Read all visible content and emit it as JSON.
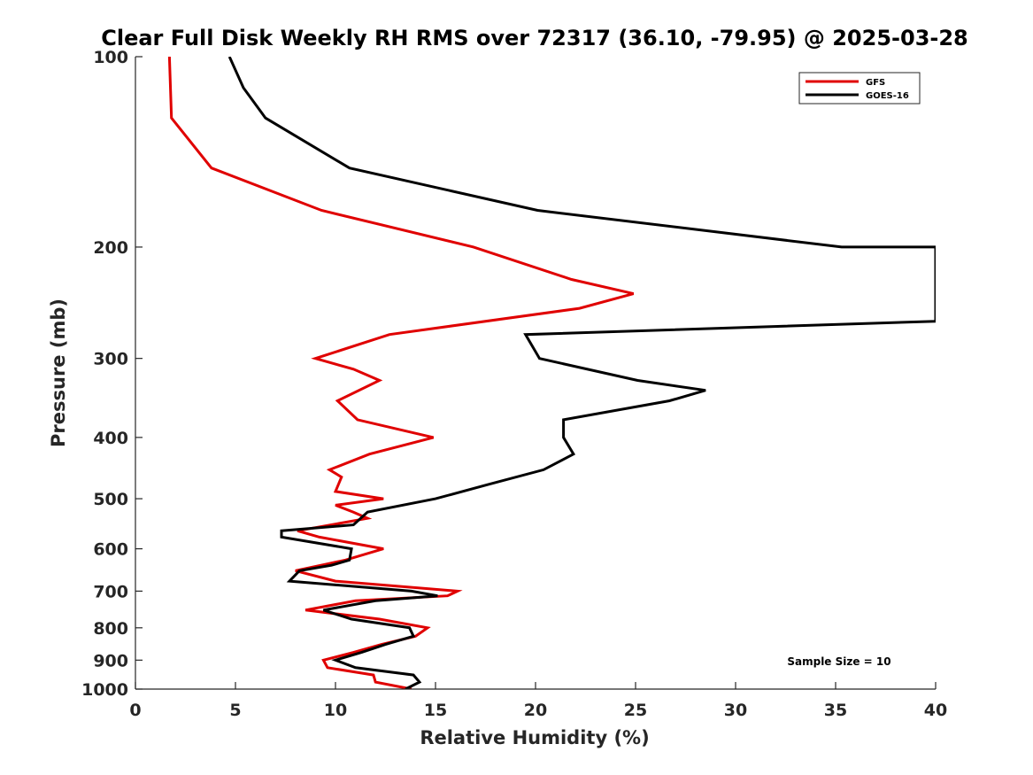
{
  "chart_data": {
    "type": "line",
    "title": "Clear Full Disk Weekly RH RMS over 72317 (36.10, -79.95) @ 2025-03-28",
    "xlabel": "Relative Humidity (%)",
    "ylabel": "Pressure (mb)",
    "xlim": [
      0,
      40
    ],
    "ylim": [
      100,
      1000
    ],
    "y_scale": "log",
    "y_reversed": true,
    "x_ticks": [
      0,
      5,
      10,
      15,
      20,
      25,
      30,
      35,
      40
    ],
    "y_ticks": [
      100,
      200,
      300,
      400,
      500,
      600,
      700,
      800,
      900,
      1000
    ],
    "grid": false,
    "legend_position": "top-right",
    "annotation": "Sample Size = 10",
    "colors": {
      "GFS": "#e00000",
      "GOES-16": "#000000"
    },
    "series": [
      {
        "name": "GFS",
        "points": [
          [
            13.8,
            1000
          ],
          [
            12.0,
            975
          ],
          [
            11.9,
            950
          ],
          [
            9.6,
            925
          ],
          [
            9.4,
            900
          ],
          [
            10.9,
            875
          ],
          [
            12.3,
            850
          ],
          [
            14.0,
            825
          ],
          [
            14.6,
            800
          ],
          [
            12.2,
            775
          ],
          [
            8.5,
            750
          ],
          [
            11.0,
            725
          ],
          [
            15.6,
            712
          ],
          [
            16.1,
            700
          ],
          [
            10.0,
            675
          ],
          [
            8.0,
            650
          ],
          [
            10.5,
            625
          ],
          [
            12.4,
            600
          ],
          [
            9.2,
            575
          ],
          [
            8.1,
            562
          ],
          [
            11.6,
            537
          ],
          [
            10.9,
            525
          ],
          [
            10.0,
            512
          ],
          [
            12.4,
            500
          ],
          [
            10.0,
            487
          ],
          [
            10.3,
            462
          ],
          [
            9.7,
            450
          ],
          [
            11.7,
            425
          ],
          [
            14.9,
            400
          ],
          [
            11.1,
            375
          ],
          [
            10.1,
            350
          ],
          [
            12.2,
            325
          ],
          [
            10.9,
            312
          ],
          [
            9.0,
            300
          ],
          [
            12.7,
            275
          ],
          [
            22.2,
            250
          ],
          [
            24.9,
            237
          ],
          [
            21.8,
            225
          ],
          [
            16.9,
            200
          ],
          [
            9.3,
            175
          ],
          [
            3.8,
            150
          ],
          [
            1.8,
            125
          ],
          [
            1.7,
            100
          ]
        ]
      },
      {
        "name": "GOES-16",
        "points": [
          [
            13.5,
            1000
          ],
          [
            14.2,
            975
          ],
          [
            13.9,
            950
          ],
          [
            11.0,
            925
          ],
          [
            10.0,
            900
          ],
          [
            11.3,
            875
          ],
          [
            12.5,
            850
          ],
          [
            13.9,
            825
          ],
          [
            13.7,
            800
          ],
          [
            10.8,
            775
          ],
          [
            9.4,
            750
          ],
          [
            12.0,
            725
          ],
          [
            15.1,
            712
          ],
          [
            13.8,
            700
          ],
          [
            7.7,
            675
          ],
          [
            8.2,
            650
          ],
          [
            9.8,
            637
          ],
          [
            10.7,
            625
          ],
          [
            10.8,
            600
          ],
          [
            7.3,
            575
          ],
          [
            7.3,
            562
          ],
          [
            10.9,
            550
          ],
          [
            11.6,
            525
          ],
          [
            15.0,
            500
          ],
          [
            17.6,
            475
          ],
          [
            20.4,
            450
          ],
          [
            21.9,
            425
          ],
          [
            21.4,
            400
          ],
          [
            21.4,
            375
          ],
          [
            26.7,
            350
          ],
          [
            28.5,
            337
          ],
          [
            25.1,
            325
          ],
          [
            20.2,
            300
          ],
          [
            19.5,
            275
          ],
          [
            40.0,
            262
          ],
          [
            40.0,
            200
          ],
          [
            35.3,
            200
          ],
          [
            20.1,
            175
          ],
          [
            10.7,
            150
          ],
          [
            6.5,
            125
          ],
          [
            5.4,
            112
          ],
          [
            4.7,
            100
          ]
        ]
      }
    ]
  }
}
